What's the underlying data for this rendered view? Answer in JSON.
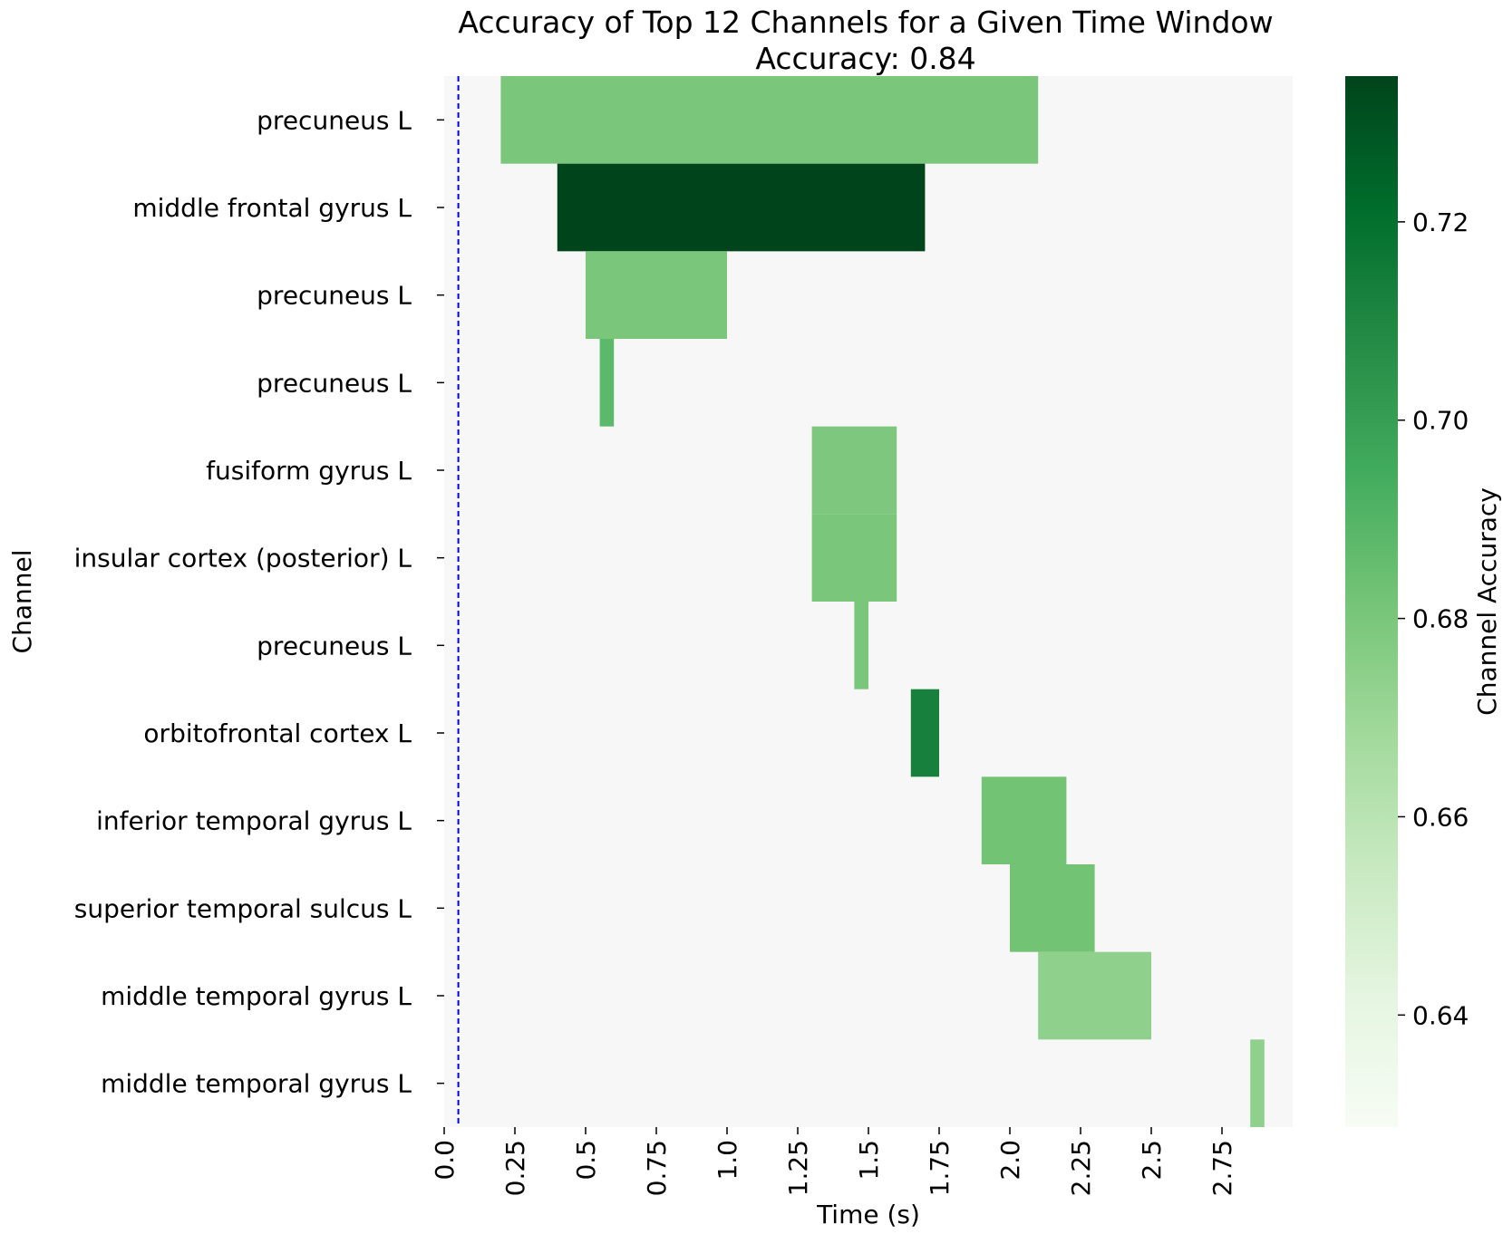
{
  "chart_data": {
    "type": "heatmap",
    "title": "Accuracy of Top 12 Channels for a Given Time Window",
    "subtitle": "Accuracy: 0.84",
    "xlabel": "Time (s)",
    "ylabel": "Channel",
    "xlim": [
      0,
      3.0
    ],
    "x_ticks": [
      0.0,
      0.25,
      0.5,
      0.75,
      1.0,
      1.25,
      1.5,
      1.75,
      2.0,
      2.25,
      2.5,
      2.75
    ],
    "x_tick_labels": [
      "0.0",
      "0.25",
      "0.5",
      "0.75",
      "1.0",
      "1.25",
      "1.5",
      "1.75",
      "2.0",
      "2.25",
      "2.5",
      "2.75"
    ],
    "reference_line": {
      "x": 0.05,
      "color": "#0000ff",
      "style": "dashed"
    },
    "background_color": "#f7f7f7",
    "channels": [
      {
        "label": "precuneus L",
        "start": 0.2,
        "end": 2.1,
        "accuracy": 0.68
      },
      {
        "label": "middle frontal gyrus L",
        "start": 0.4,
        "end": 1.7,
        "accuracy": 0.735
      },
      {
        "label": "precuneus L",
        "start": 0.5,
        "end": 1.0,
        "accuracy": 0.68
      },
      {
        "label": "precuneus L",
        "start": 0.55,
        "end": 0.6,
        "accuracy": 0.688
      },
      {
        "label": "fusiform gyrus L",
        "start": 1.3,
        "end": 1.6,
        "accuracy": 0.679
      },
      {
        "label": "insular cortex (posterior) L",
        "start": 1.3,
        "end": 1.6,
        "accuracy": 0.68
      },
      {
        "label": "precuneus L",
        "start": 1.45,
        "end": 1.5,
        "accuracy": 0.68
      },
      {
        "label": "orbitofrontal cortex L",
        "start": 1.65,
        "end": 1.75,
        "accuracy": 0.713
      },
      {
        "label": "inferior temporal gyrus L",
        "start": 1.9,
        "end": 2.2,
        "accuracy": 0.682
      },
      {
        "label": "superior temporal sulcus L",
        "start": 2.0,
        "end": 2.3,
        "accuracy": 0.682
      },
      {
        "label": "middle temporal gyrus L",
        "start": 2.1,
        "end": 2.5,
        "accuracy": 0.674
      },
      {
        "label": "middle temporal gyrus L",
        "start": 2.85,
        "end": 2.9,
        "accuracy": 0.674
      }
    ],
    "colorbar": {
      "label": "Channel Accuracy",
      "colormap": "Greens",
      "range": [
        0.6287,
        0.7347
      ],
      "ticks": [
        0.64,
        0.66,
        0.68,
        0.7,
        0.72
      ],
      "tick_labels": [
        "0.64",
        "0.66",
        "0.68",
        "0.70",
        "0.72"
      ]
    }
  }
}
